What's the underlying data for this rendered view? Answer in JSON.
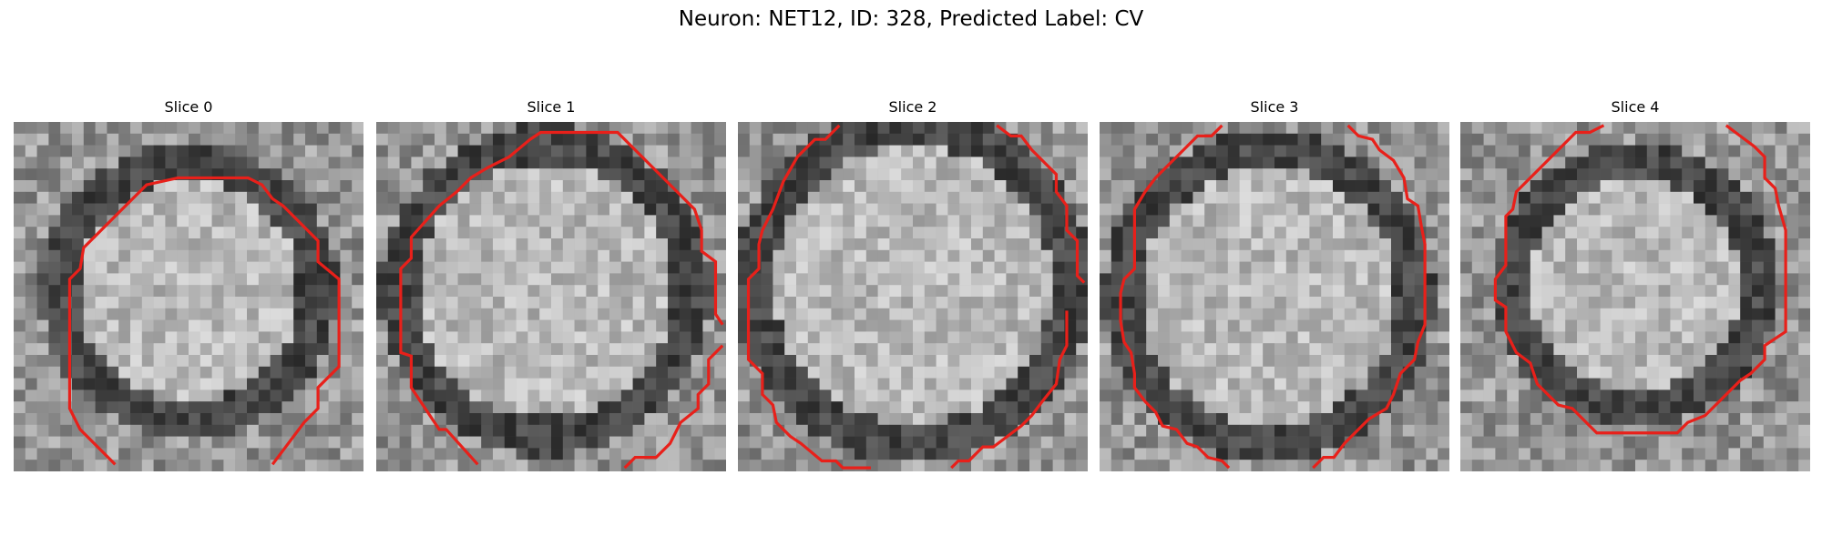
{
  "figure": {
    "title": "Neuron: NET12, ID: 328, Predicted Label: CV"
  },
  "panels": [
    {
      "title": "Slice 0",
      "contour_color": "#e8201a"
    },
    {
      "title": "Slice 1",
      "contour_color": "#e8201a"
    },
    {
      "title": "Slice 2",
      "contour_color": "#e8201a"
    },
    {
      "title": "Slice 3",
      "contour_color": "#e8201a"
    },
    {
      "title": "Slice 4",
      "contour_color": "#e8201a"
    }
  ]
}
